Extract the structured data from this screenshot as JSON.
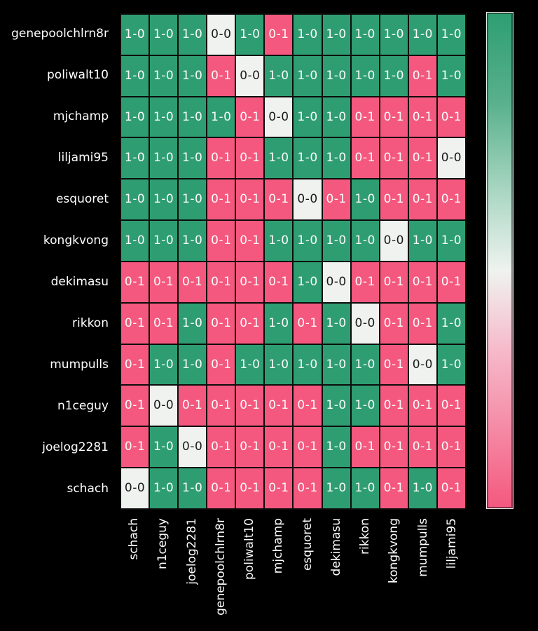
{
  "chart_data": {
    "type": "heatmap",
    "title": "",
    "xlabel": "",
    "ylabel": "",
    "rows": [
      "genepoolchlrn8r",
      "poliwalt10",
      "mjchamp",
      "liljami95",
      "esquoret",
      "kongkvong",
      "dekimasu",
      "rikkon",
      "mumpulls",
      "n1ceguy",
      "joelog2281",
      "schach"
    ],
    "columns": [
      "schach",
      "n1ceguy",
      "joelog2281",
      "genepoolchlrn8r",
      "poliwalt10",
      "mjchamp",
      "esquoret",
      "dekimasu",
      "rikkon",
      "kongkvong",
      "mumpulls",
      "liljami95"
    ],
    "cells": [
      [
        "1-0",
        "1-0",
        "1-0",
        "0-0",
        "1-0",
        "0-1",
        "1-0",
        "1-0",
        "1-0",
        "1-0",
        "1-0",
        "1-0"
      ],
      [
        "1-0",
        "1-0",
        "1-0",
        "0-1",
        "0-0",
        "1-0",
        "1-0",
        "1-0",
        "1-0",
        "1-0",
        "0-1",
        "1-0"
      ],
      [
        "1-0",
        "1-0",
        "1-0",
        "1-0",
        "0-1",
        "0-0",
        "1-0",
        "1-0",
        "0-1",
        "0-1",
        "0-1",
        "0-1"
      ],
      [
        "1-0",
        "1-0",
        "1-0",
        "0-1",
        "0-1",
        "1-0",
        "1-0",
        "1-0",
        "0-1",
        "0-1",
        "0-1",
        "0-0"
      ],
      [
        "1-0",
        "1-0",
        "1-0",
        "0-1",
        "0-1",
        "0-1",
        "0-0",
        "0-1",
        "1-0",
        "0-1",
        "0-1",
        "0-1"
      ],
      [
        "1-0",
        "1-0",
        "1-0",
        "0-1",
        "0-1",
        "1-0",
        "1-0",
        "1-0",
        "1-0",
        "0-0",
        "1-0",
        "1-0"
      ],
      [
        "0-1",
        "0-1",
        "0-1",
        "0-1",
        "0-1",
        "0-1",
        "1-0",
        "0-0",
        "0-1",
        "0-1",
        "0-1",
        "0-1"
      ],
      [
        "0-1",
        "0-1",
        "1-0",
        "0-1",
        "0-1",
        "1-0",
        "0-1",
        "1-0",
        "0-0",
        "0-1",
        "0-1",
        "1-0"
      ],
      [
        "0-1",
        "1-0",
        "1-0",
        "0-1",
        "1-0",
        "1-0",
        "1-0",
        "1-0",
        "1-0",
        "0-1",
        "0-0",
        "1-0"
      ],
      [
        "0-1",
        "0-0",
        "0-1",
        "0-1",
        "0-1",
        "0-1",
        "0-1",
        "1-0",
        "1-0",
        "0-1",
        "0-1",
        "0-1"
      ],
      [
        "0-1",
        "1-0",
        "0-0",
        "0-1",
        "0-1",
        "0-1",
        "0-1",
        "1-0",
        "0-1",
        "0-1",
        "0-1",
        "0-1"
      ],
      [
        "0-0",
        "1-0",
        "1-0",
        "0-1",
        "0-1",
        "0-1",
        "0-1",
        "1-0",
        "1-0",
        "0-1",
        "1-0",
        "0-1"
      ]
    ],
    "value_styles": {
      "1-0": {
        "bg": "#2E9E72",
        "fg": "#FAFAFA"
      },
      "0-1": {
        "bg": "#F4587E",
        "fg": "#FAFAFA"
      },
      "0-0": {
        "bg": "#F0F2F0",
        "fg": "#1A1A1A"
      }
    },
    "grid_line_color": "#0D0D0D",
    "label_color": "#FFFFFF",
    "background": "#000000",
    "legend_position": "right",
    "colorbar": {
      "orientation": "vertical",
      "tick_labels": [],
      "stops": [
        {
          "color": "#2E9E72",
          "pos": 0
        },
        {
          "color": "#58B08C",
          "pos": 18
        },
        {
          "color": "#A9D6C2",
          "pos": 36
        },
        {
          "color": "#EFF3F0",
          "pos": 52
        },
        {
          "color": "#F6BACB",
          "pos": 68
        },
        {
          "color": "#F58AA5",
          "pos": 84
        },
        {
          "color": "#F4587E",
          "pos": 100
        }
      ]
    }
  }
}
